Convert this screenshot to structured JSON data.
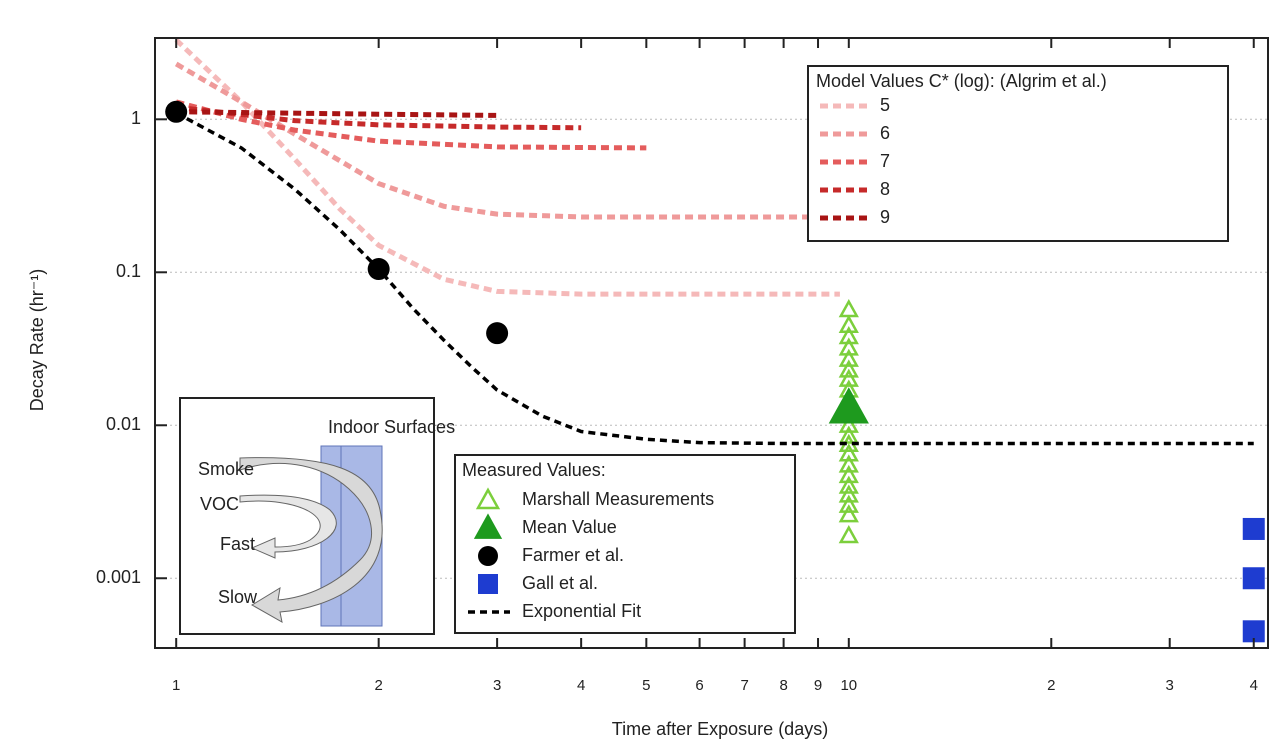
{
  "chart_data": {
    "type": "line",
    "log_x": true,
    "log_y": true,
    "x_label": "Time after Exposure (days)",
    "y_label": "Decay Rate (hr⁻¹)",
    "xlim": [
      0.93,
      42
    ],
    "ylim": [
      0.00035,
      3.4
    ],
    "xticks": [
      1,
      2,
      3,
      4,
      5,
      6,
      7,
      8,
      9,
      10,
      {
        "value": 20,
        "label": "2"
      },
      {
        "value": 30,
        "label": "3"
      },
      {
        "value": 40,
        "label": "4"
      }
    ],
    "yticks": [
      0.001,
      0.01,
      0.1,
      1
    ],
    "grid": true,
    "model": {
      "legend_title": "Model Values C* (log): (Algrim et al.)",
      "legend_position": "upper right",
      "series": [
        {
          "name": "5",
          "color": "#f5b9b9",
          "x": [
            1,
            1.25,
            1.5,
            1.75,
            2,
            2.5,
            3,
            4,
            9.7
          ],
          "values": [
            3.3,
            1.3,
            0.55,
            0.26,
            0.15,
            0.09,
            0.075,
            0.072,
            0.072
          ]
        },
        {
          "name": "6",
          "color": "#ef9a9a",
          "x": [
            1,
            1.25,
            1.5,
            2,
            2.5,
            3,
            4,
            10
          ],
          "values": [
            2.3,
            1.3,
            0.8,
            0.38,
            0.27,
            0.24,
            0.23,
            0.23
          ]
        },
        {
          "name": "7",
          "color": "#e45c5c",
          "x": [
            1,
            1.25,
            1.5,
            2,
            3,
            5
          ],
          "values": [
            1.3,
            1.0,
            0.85,
            0.72,
            0.66,
            0.65
          ]
        },
        {
          "name": "8",
          "color": "#c62a2a",
          "x": [
            1,
            1.5,
            2,
            3,
            4
          ],
          "values": [
            1.2,
            0.98,
            0.92,
            0.89,
            0.88
          ]
        },
        {
          "name": "9",
          "color": "#a81414",
          "x": [
            1,
            2,
            3
          ],
          "values": [
            1.12,
            1.08,
            1.06
          ]
        }
      ]
    },
    "measured": {
      "legend_title": "Measured Values:",
      "legend_position": "lower center",
      "series": [
        {
          "name": "Marshall Measurements",
          "color": "#7ccf3c",
          "marker": "triangle-open",
          "x": [
            10,
            10,
            10,
            10,
            10,
            10,
            10,
            10,
            10,
            10,
            10,
            10,
            10,
            10,
            10,
            10,
            10,
            10,
            10,
            10,
            10
          ],
          "values": [
            0.057,
            0.045,
            0.038,
            0.032,
            0.027,
            0.023,
            0.02,
            0.017,
            0.015,
            0.012,
            0.01,
            0.0085,
            0.0075,
            0.0065,
            0.0055,
            0.0047,
            0.004,
            0.0035,
            0.003,
            0.0026,
            0.0019
          ]
        },
        {
          "name": "Mean Value",
          "color": "#1e9a1e",
          "marker": "triangle",
          "x": [
            10
          ],
          "values": [
            0.013
          ]
        },
        {
          "name": "Farmer et al.",
          "color": "#000000",
          "marker": "circle",
          "x": [
            1,
            2,
            3
          ],
          "values": [
            1.12,
            0.105,
            0.04
          ]
        },
        {
          "name": "Gall et al.",
          "color": "#1e3cd0",
          "marker": "square",
          "x": [
            40,
            40,
            40
          ],
          "values": [
            0.0021,
            0.001,
            0.00045
          ]
        },
        {
          "name": "Exponential Fit",
          "color": "#000000",
          "marker": "dash",
          "x": [
            1,
            1.25,
            1.5,
            1.75,
            2,
            2.25,
            2.5,
            2.75,
            3,
            3.5,
            4,
            5,
            6,
            8,
            10,
            20,
            40
          ],
          "values": [
            1.1,
            0.65,
            0.35,
            0.19,
            0.105,
            0.058,
            0.036,
            0.024,
            0.017,
            0.0115,
            0.0091,
            0.0081,
            0.0077,
            0.0076,
            0.0076,
            0.0076,
            0.0076
          ]
        }
      ]
    },
    "inset": {
      "title": "Indoor Surfaces",
      "labels": [
        "Smoke",
        "VOC",
        "Fast",
        "Slow"
      ]
    }
  }
}
